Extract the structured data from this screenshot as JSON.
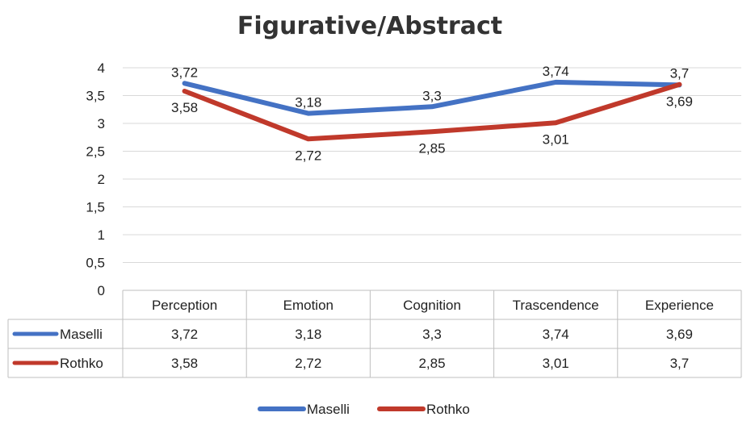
{
  "chart_data": {
    "type": "line",
    "title": "Figurative/Abstract",
    "categories": [
      "Perception",
      "Emotion",
      "Cognition",
      "Trascendence",
      "Experience"
    ],
    "ylim": [
      0,
      4
    ],
    "y_ticks": [
      "0",
      "0,5",
      "1",
      "1,5",
      "2",
      "2,5",
      "3",
      "3,5",
      "4"
    ],
    "y_tick_values": [
      0,
      0.5,
      1,
      1.5,
      2,
      2.5,
      3,
      3.5,
      4
    ],
    "grid": true,
    "legend": "bottom",
    "data_table": true,
    "series": [
      {
        "name": "Maselli",
        "color": "#4472c4",
        "values": [
          3.72,
          3.18,
          3.3,
          3.74,
          3.69
        ],
        "labels": [
          "3,72",
          "3,18",
          "3,3",
          "3,74",
          "3,69"
        ]
      },
      {
        "name": "Rothko",
        "color": "#c0392b",
        "values": [
          3.58,
          2.72,
          2.85,
          3.01,
          3.7
        ],
        "labels": [
          "3,58",
          "2,72",
          "2,85",
          "3,01",
          "3,7"
        ]
      }
    ]
  }
}
